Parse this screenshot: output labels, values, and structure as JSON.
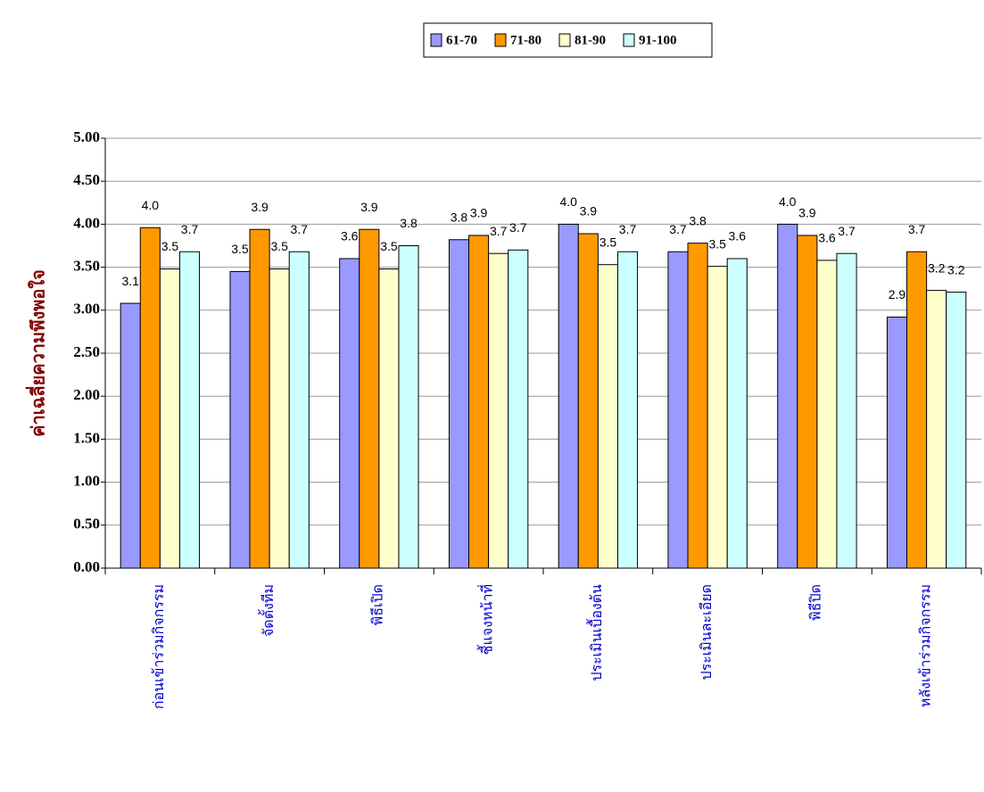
{
  "chart_data": {
    "type": "bar",
    "y_label": "ค่าเฉลี่ยความพึงพอใจ",
    "categories": [
      "ก่อนเข้าร่วมกิจกรรม",
      "จัดตั้งทีม",
      "พิธีเปิด",
      "ชี้แจงหน้าที่",
      "ประเมินเบื้องต้น",
      "ประเมินละเอียด",
      "พิธีปิด",
      "หลังเข้าร่วมกิจกรรม"
    ],
    "series": [
      {
        "name": "61-70",
        "color": "#9999ff",
        "values": [
          3.08,
          3.45,
          3.6,
          3.82,
          4.0,
          3.68,
          4.0,
          2.92
        ],
        "value_labels": [
          "3.1",
          "3.5",
          "3.6",
          "3.8",
          "4.0",
          "3.7",
          "4.0",
          "2.9"
        ]
      },
      {
        "name": "71-80",
        "color": "#ff9900",
        "values": [
          3.96,
          3.94,
          3.94,
          3.87,
          3.89,
          3.78,
          3.87,
          3.68
        ],
        "value_labels": [
          "4.0",
          "3.9",
          "3.9",
          "3.9",
          "3.9",
          "3.8",
          "3.9",
          "3.7"
        ]
      },
      {
        "name": "81-90",
        "color": "#ffffcc",
        "values": [
          3.48,
          3.48,
          3.48,
          3.66,
          3.53,
          3.51,
          3.58,
          3.23
        ],
        "value_labels": [
          "3.5",
          "3.5",
          "3.5",
          "3.7",
          "3.5",
          "3.5",
          "3.6",
          "3.2"
        ]
      },
      {
        "name": "91-100",
        "color": "#ccffff",
        "values": [
          3.68,
          3.68,
          3.75,
          3.7,
          3.68,
          3.6,
          3.66,
          3.21
        ],
        "value_labels": [
          "3.7",
          "3.7",
          "3.8",
          "3.7",
          "3.7",
          "3.6",
          "3.7",
          "3.2"
        ]
      }
    ],
    "ylim": [
      0,
      5
    ],
    "yticks": [
      {
        "value": 0,
        "label": "0.00"
      },
      {
        "value": 0.5,
        "label": "0.50"
      },
      {
        "value": 1,
        "label": "1.00"
      },
      {
        "value": 1.5,
        "label": "1.50"
      },
      {
        "value": 2,
        "label": "2.00"
      },
      {
        "value": 2.5,
        "label": "2.50"
      },
      {
        "value": 3,
        "label": "3.00"
      },
      {
        "value": 3.5,
        "label": "3.50"
      },
      {
        "value": 4,
        "label": "4.00"
      },
      {
        "value": 4.5,
        "label": "4.50"
      },
      {
        "value": 5,
        "label": "5.00"
      }
    ],
    "grid": true
  }
}
